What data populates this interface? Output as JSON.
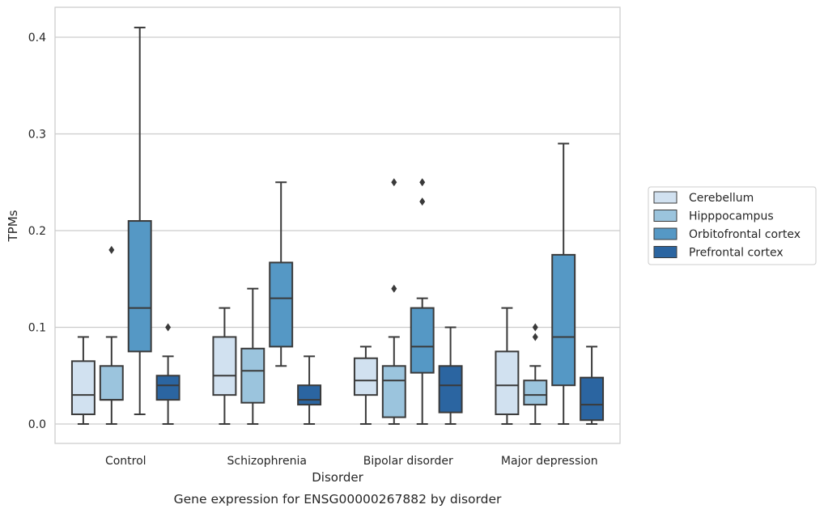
{
  "chart_data": {
    "type": "box",
    "title": "",
    "caption": "Gene expression for ENSG00000267882 by disorder",
    "xlabel": "Disorder",
    "ylabel": "TPMs",
    "ylim": [
      -0.02,
      0.43
    ],
    "yticks": [
      0.0,
      0.1,
      0.2,
      0.3,
      0.4
    ],
    "ytick_labels": [
      "0.0",
      "0.1",
      "0.2",
      "0.3",
      "0.4"
    ],
    "grid": "horizontal",
    "legend_position": "right",
    "categories": [
      "Control",
      "Schizophrenia",
      "Bipolar disorder",
      "Major depression"
    ],
    "series": [
      {
        "name": "Cerebellum",
        "color": "#d1e1f0",
        "boxes": [
          {
            "min": 0.0,
            "q1": 0.01,
            "median": 0.03,
            "q3": 0.065,
            "max": 0.09,
            "outliers": []
          },
          {
            "min": 0.0,
            "q1": 0.03,
            "median": 0.05,
            "q3": 0.09,
            "max": 0.12,
            "outliers": []
          },
          {
            "min": 0.0,
            "q1": 0.03,
            "median": 0.045,
            "q3": 0.068,
            "max": 0.08,
            "outliers": []
          },
          {
            "min": 0.0,
            "q1": 0.01,
            "median": 0.04,
            "q3": 0.075,
            "max": 0.12,
            "outliers": []
          }
        ]
      },
      {
        "name": "Hipppocampus",
        "color": "#9bc4dd",
        "boxes": [
          {
            "min": 0.0,
            "q1": 0.025,
            "median": 0.025,
            "q3": 0.06,
            "max": 0.09,
            "outliers": [
              0.18
            ]
          },
          {
            "min": 0.0,
            "q1": 0.022,
            "median": 0.055,
            "q3": 0.078,
            "max": 0.14,
            "outliers": []
          },
          {
            "min": 0.0,
            "q1": 0.007,
            "median": 0.045,
            "q3": 0.06,
            "max": 0.09,
            "outliers": [
              0.14,
              0.25
            ]
          },
          {
            "min": 0.0,
            "q1": 0.02,
            "median": 0.03,
            "q3": 0.045,
            "max": 0.06,
            "outliers": [
              0.09,
              0.1
            ]
          }
        ]
      },
      {
        "name": "Orbitofrontal cortex",
        "color": "#5598c5",
        "boxes": [
          {
            "min": 0.01,
            "q1": 0.075,
            "median": 0.12,
            "q3": 0.21,
            "max": 0.41,
            "outliers": []
          },
          {
            "min": 0.06,
            "q1": 0.08,
            "median": 0.13,
            "q3": 0.167,
            "max": 0.25,
            "outliers": []
          },
          {
            "min": 0.0,
            "q1": 0.053,
            "median": 0.08,
            "q3": 0.12,
            "max": 0.13,
            "outliers": [
              0.23,
              0.25
            ]
          },
          {
            "min": 0.0,
            "q1": 0.04,
            "median": 0.09,
            "q3": 0.175,
            "max": 0.29,
            "outliers": []
          }
        ]
      },
      {
        "name": "Prefrontal cortex",
        "color": "#2b65a1",
        "boxes": [
          {
            "min": 0.0,
            "q1": 0.025,
            "median": 0.04,
            "q3": 0.05,
            "max": 0.07,
            "outliers": [
              0.1
            ]
          },
          {
            "min": 0.0,
            "q1": 0.02,
            "median": 0.025,
            "q3": 0.04,
            "max": 0.07,
            "outliers": []
          },
          {
            "min": 0.0,
            "q1": 0.012,
            "median": 0.04,
            "q3": 0.06,
            "max": 0.1,
            "outliers": []
          },
          {
            "min": 0.0,
            "q1": 0.004,
            "median": 0.02,
            "q3": 0.048,
            "max": 0.08,
            "outliers": []
          }
        ]
      }
    ]
  }
}
